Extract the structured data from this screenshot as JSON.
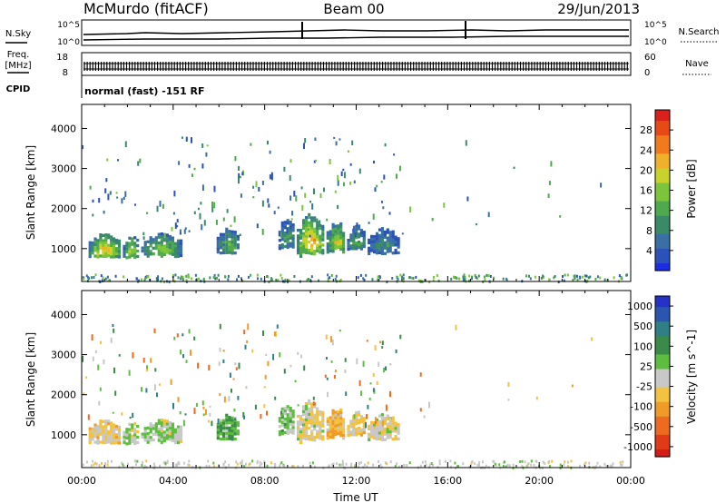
{
  "header": {
    "station": "McMurdo (fitACF)",
    "beam": "Beam 00",
    "date": "29/Jun/2013"
  },
  "noise_panel": {
    "left_label": "N.Sky",
    "right_label": "N.Search",
    "tick_top": "10^5",
    "tick_bottom": "10^0"
  },
  "freq_panel": {
    "left_label_1": "Freq.",
    "left_label_2": "[MHz]",
    "left_tick_top": "18",
    "left_tick_bottom": "8",
    "right_label": "Nave",
    "right_tick_top": "60",
    "right_tick_bottom": "0",
    "cpid_label": "CPID",
    "cpid_text": "normal (fast) -151 RF"
  },
  "colors": {
    "power_scale": [
      "#1c2fe0",
      "#2a52b8",
      "#3a6fa6",
      "#3a8a6a",
      "#4fa94d",
      "#7cc53a",
      "#c8d22b",
      "#f0b02a",
      "#f07a1c",
      "#e84a16",
      "#d9201a"
    ],
    "velocity_scale": [
      "#2532c8",
      "#2a55b0",
      "#2f7f86",
      "#3a8a4a",
      "#5dbd3e",
      "#c8c8c8",
      "#f2c240",
      "#f09a28",
      "#ee6a1e",
      "#e03a18",
      "#d61a16"
    ]
  },
  "chart_data": [
    {
      "type": "heatmap",
      "title": "",
      "xlabel": "",
      "ylabel": "Slant Range [km]",
      "x_ticks": [
        "00:00",
        "04:00",
        "08:00",
        "12:00",
        "16:00",
        "20:00",
        "00:00"
      ],
      "y_ticks": [
        1000,
        2000,
        3000,
        4000
      ],
      "xlim_hours": [
        0,
        24
      ],
      "ylim_km": [
        180,
        4600
      ],
      "colorbar_label": "Power [dB]",
      "colorbar_ticks": [
        "4",
        "8",
        "12",
        "16",
        "20",
        "24",
        "28"
      ],
      "colorbar_range": [
        0,
        32
      ],
      "echo_regions": [
        {
          "t0": 0.3,
          "t1": 1.7,
          "r0": 700,
          "r1": 1450,
          "peak": 22
        },
        {
          "t0": 1.8,
          "t1": 2.5,
          "r0": 700,
          "r1": 1400,
          "peak": 18
        },
        {
          "t0": 2.6,
          "t1": 4.4,
          "r0": 720,
          "r1": 1450,
          "peak": 16
        },
        {
          "t0": 5.9,
          "t1": 6.9,
          "r0": 800,
          "r1": 1600,
          "peak": 14
        },
        {
          "t0": 8.6,
          "t1": 9.3,
          "r0": 900,
          "r1": 1900,
          "peak": 12
        },
        {
          "t0": 9.4,
          "t1": 10.6,
          "r0": 700,
          "r1": 2000,
          "peak": 24
        },
        {
          "t0": 10.7,
          "t1": 11.5,
          "r0": 800,
          "r1": 1800,
          "peak": 20
        },
        {
          "t0": 11.6,
          "t1": 12.4,
          "r0": 900,
          "r1": 1700,
          "peak": 14
        },
        {
          "t0": 12.5,
          "t1": 13.9,
          "r0": 800,
          "r1": 1600,
          "peak": 10
        }
      ]
    },
    {
      "type": "heatmap",
      "title": "",
      "xlabel": "Time UT",
      "ylabel": "Slant Range [km]",
      "x_ticks": [
        "00:00",
        "04:00",
        "08:00",
        "12:00",
        "16:00",
        "20:00",
        "00:00"
      ],
      "y_ticks": [
        1000,
        2000,
        3000,
        4000
      ],
      "xlim_hours": [
        0,
        24
      ],
      "ylim_km": [
        180,
        4600
      ],
      "colorbar_label": "Velocity [m s^-1]",
      "colorbar_ticks": [
        "1000",
        "500",
        "100",
        "25",
        "-25",
        "-100",
        "-500",
        "-1000"
      ],
      "colorbar_range": [
        -1200,
        1200
      ],
      "echo_regions": [
        {
          "t0": 0.3,
          "t1": 1.7,
          "r0": 700,
          "r1": 1450,
          "v": -150
        },
        {
          "t0": 1.8,
          "t1": 2.5,
          "r0": 700,
          "r1": 1400,
          "v": 60
        },
        {
          "t0": 2.6,
          "t1": 4.4,
          "r0": 720,
          "r1": 1450,
          "v": 80
        },
        {
          "t0": 5.9,
          "t1": 6.9,
          "r0": 800,
          "r1": 1600,
          "v": 300
        },
        {
          "t0": 8.6,
          "t1": 9.3,
          "r0": 900,
          "r1": 1900,
          "v": 200
        },
        {
          "t0": 9.4,
          "t1": 10.6,
          "r0": 700,
          "r1": 2000,
          "v": -80
        },
        {
          "t0": 10.7,
          "t1": 11.5,
          "r0": 800,
          "r1": 1800,
          "v": -300
        },
        {
          "t0": 11.6,
          "t1": 12.4,
          "r0": 900,
          "r1": 1700,
          "v": -150
        },
        {
          "t0": 12.5,
          "t1": 13.9,
          "r0": 800,
          "r1": 1600,
          "v": -60
        }
      ]
    }
  ]
}
